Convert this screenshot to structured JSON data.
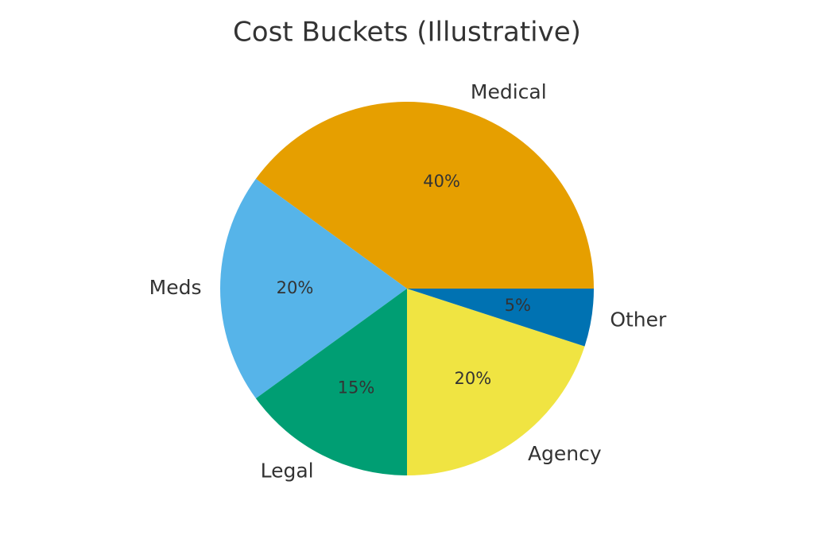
{
  "chart_data": {
    "type": "pie",
    "title": "Cost Buckets (Illustrative)",
    "categories": [
      "Medical",
      "Meds",
      "Legal",
      "Agency",
      "Other"
    ],
    "values": [
      40,
      20,
      15,
      20,
      5
    ],
    "value_labels": [
      "40%",
      "20%",
      "15%",
      "20%",
      "5%"
    ],
    "colors": [
      "#E69F00",
      "#56B4E9",
      "#009E73",
      "#F0E442",
      "#0072B2"
    ]
  }
}
